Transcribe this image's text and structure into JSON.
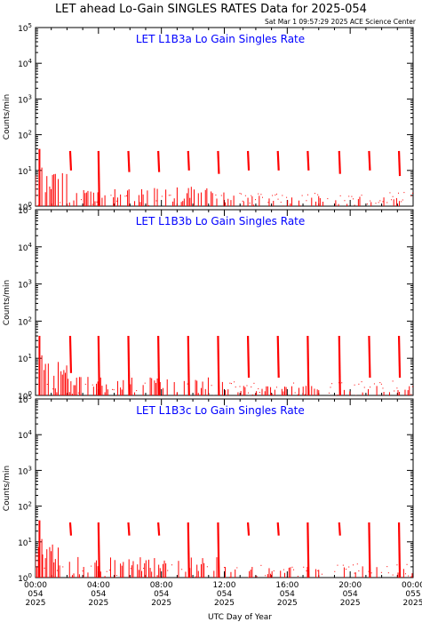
{
  "title": "LET ahead Lo-Gain SINGLES RATES Data for 2025-054",
  "timestamp": "Sat Mar  1 09:57:29 2025 ACE Science Center",
  "x_axis_label": "UTC Day of Year",
  "colors": {
    "data": "#ff0000",
    "panel_title": "#0000ff",
    "axes": "#000000"
  },
  "chart_data": [
    {
      "type": "line",
      "title": "LET L1B3a Lo Gain Singles Rate",
      "ylabel": "Counts/min",
      "yscale": "log",
      "ylim": [
        1,
        100000
      ],
      "y_ticks": [
        {
          "base": "10",
          "exp": "0"
        },
        {
          "base": "10",
          "exp": "1"
        },
        {
          "base": "10",
          "exp": "2"
        },
        {
          "base": "10",
          "exp": "3"
        },
        {
          "base": "10",
          "exp": "4"
        },
        {
          "base": "10",
          "exp": "5"
        }
      ],
      "xlim_hours": [
        0,
        24
      ],
      "spikes": [
        {
          "t": 2.2,
          "top": 35,
          "bottom": 10
        },
        {
          "t": 4.0,
          "top": 35,
          "bottom": 1
        },
        {
          "t": 5.9,
          "top": 35,
          "bottom": 9
        },
        {
          "t": 7.8,
          "top": 35,
          "bottom": 9
        },
        {
          "t": 9.7,
          "top": 35,
          "bottom": 10
        },
        {
          "t": 11.6,
          "top": 35,
          "bottom": 8
        },
        {
          "t": 13.5,
          "top": 35,
          "bottom": 10
        },
        {
          "t": 15.4,
          "top": 35,
          "bottom": 10
        },
        {
          "t": 17.3,
          "top": 35,
          "bottom": 10
        },
        {
          "t": 19.3,
          "top": 35,
          "bottom": 8
        },
        {
          "t": 21.2,
          "top": 35,
          "bottom": 10
        },
        {
          "t": 23.1,
          "top": 35,
          "bottom": 7
        }
      ],
      "baseline_level": 1.5
    },
    {
      "type": "line",
      "title": "LET L1B3b Lo Gain Singles Rate",
      "ylabel": "Counts/min",
      "yscale": "log",
      "ylim": [
        1,
        100000
      ],
      "y_ticks": [
        {
          "base": "10",
          "exp": "0"
        },
        {
          "base": "10",
          "exp": "1"
        },
        {
          "base": "10",
          "exp": "2"
        },
        {
          "base": "10",
          "exp": "3"
        },
        {
          "base": "10",
          "exp": "4"
        },
        {
          "base": "10",
          "exp": "5"
        }
      ],
      "xlim_hours": [
        0,
        24
      ],
      "spikes": [
        {
          "t": 2.2,
          "top": 40,
          "bottom": 4
        },
        {
          "t": 4.0,
          "top": 40,
          "bottom": 1
        },
        {
          "t": 5.9,
          "top": 40,
          "bottom": 1
        },
        {
          "t": 7.8,
          "top": 40,
          "bottom": 1
        },
        {
          "t": 9.7,
          "top": 40,
          "bottom": 1
        },
        {
          "t": 11.6,
          "top": 40,
          "bottom": 1
        },
        {
          "t": 13.5,
          "top": 40,
          "bottom": 3
        },
        {
          "t": 15.4,
          "top": 40,
          "bottom": 3
        },
        {
          "t": 17.3,
          "top": 40,
          "bottom": 1
        },
        {
          "t": 19.3,
          "top": 40,
          "bottom": 1
        },
        {
          "t": 21.2,
          "top": 40,
          "bottom": 3
        },
        {
          "t": 23.1,
          "top": 40,
          "bottom": 3
        }
      ],
      "baseline_level": 1.2
    },
    {
      "type": "line",
      "title": "LET L1B3c Lo Gain Singles Rate",
      "ylabel": "Counts/min",
      "yscale": "log",
      "ylim": [
        1,
        100000
      ],
      "y_ticks": [
        {
          "base": "10",
          "exp": "0"
        },
        {
          "base": "10",
          "exp": "1"
        },
        {
          "base": "10",
          "exp": "2"
        },
        {
          "base": "10",
          "exp": "3"
        },
        {
          "base": "10",
          "exp": "4"
        },
        {
          "base": "10",
          "exp": "5"
        }
      ],
      "xlim_hours": [
        0,
        24
      ],
      "spikes": [
        {
          "t": 2.2,
          "top": 35,
          "bottom": 15
        },
        {
          "t": 4.0,
          "top": 35,
          "bottom": 1
        },
        {
          "t": 5.9,
          "top": 35,
          "bottom": 15
        },
        {
          "t": 7.8,
          "top": 35,
          "bottom": 15
        },
        {
          "t": 9.7,
          "top": 35,
          "bottom": 1
        },
        {
          "t": 11.6,
          "top": 35,
          "bottom": 1
        },
        {
          "t": 13.5,
          "top": 35,
          "bottom": 15
        },
        {
          "t": 15.4,
          "top": 35,
          "bottom": 15
        },
        {
          "t": 17.3,
          "top": 35,
          "bottom": 1
        },
        {
          "t": 19.3,
          "top": 35,
          "bottom": 15
        },
        {
          "t": 21.2,
          "top": 35,
          "bottom": 1
        },
        {
          "t": 23.1,
          "top": 35,
          "bottom": 1
        }
      ],
      "baseline_level": 1.8
    }
  ],
  "x_ticks": [
    {
      "time": "00:00",
      "day": "054",
      "year": "2025",
      "hours": 0
    },
    {
      "time": "04:00",
      "day": "054",
      "year": "2025",
      "hours": 4
    },
    {
      "time": "08:00",
      "day": "054",
      "year": "2025",
      "hours": 8
    },
    {
      "time": "12:00",
      "day": "054",
      "year": "2025",
      "hours": 12
    },
    {
      "time": "16:00",
      "day": "054",
      "year": "2025",
      "hours": 16
    },
    {
      "time": "20:00",
      "day": "054",
      "year": "2025",
      "hours": 20
    },
    {
      "time": "00:00",
      "day": "055",
      "year": "2025",
      "hours": 24
    }
  ]
}
